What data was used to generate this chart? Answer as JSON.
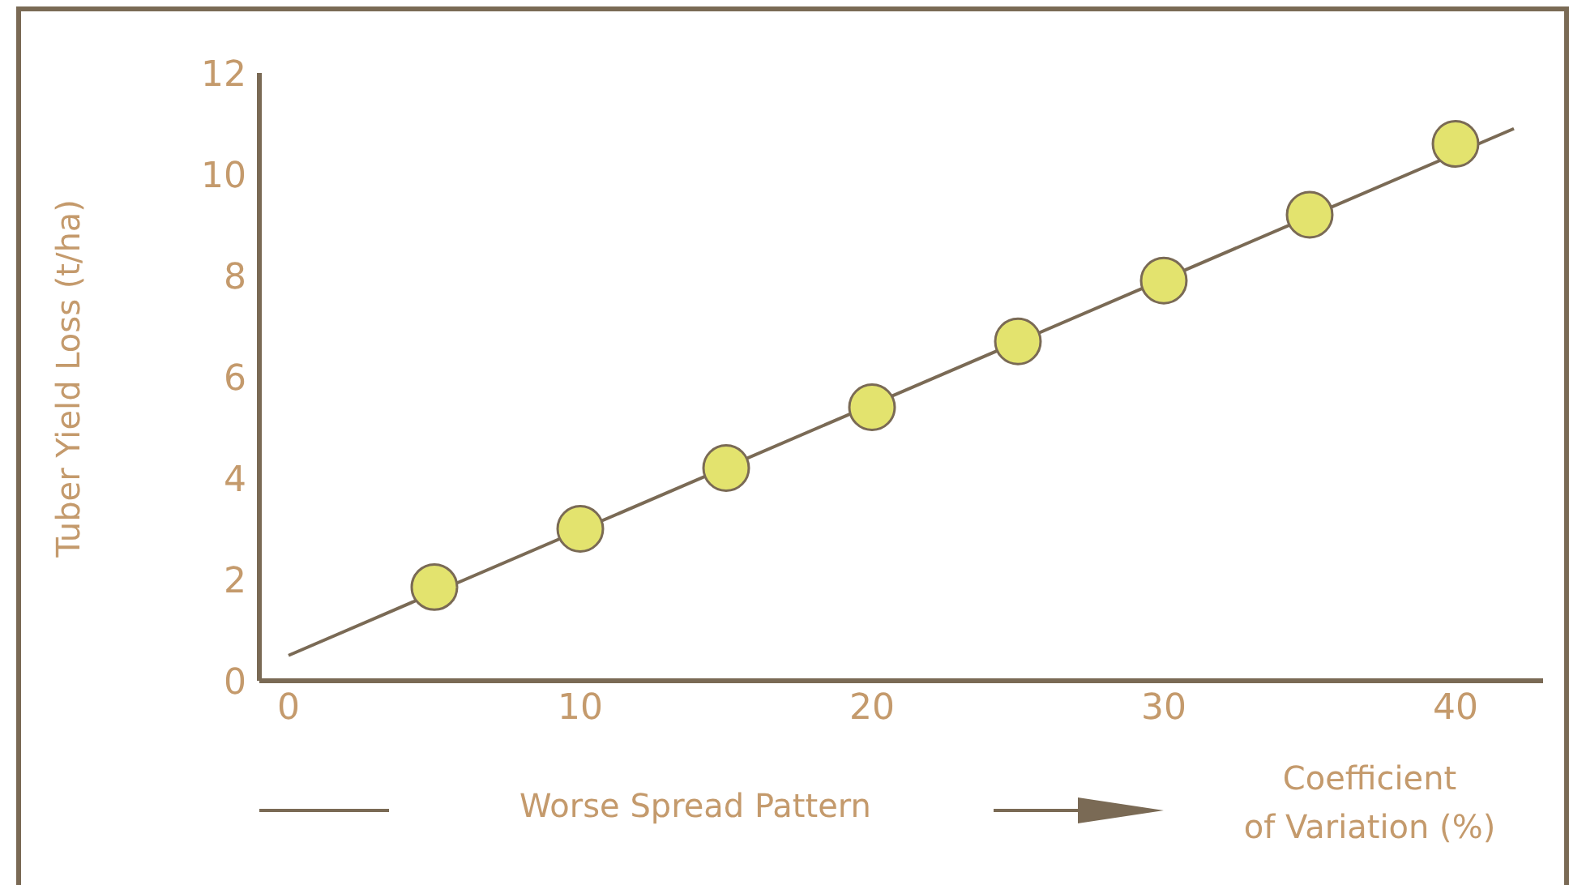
{
  "chart_data": {
    "type": "scatter",
    "xlabel": "Coefficient of Variation (%)",
    "ylabel": "Tuber Yield Loss (t/ha)",
    "annotations": [
      "Worse Spread Pattern"
    ],
    "series": [
      {
        "color": "#e3e36e",
        "x": [
          5,
          10,
          15,
          20,
          25,
          30,
          35,
          40
        ],
        "values": [
          1.85,
          3.0,
          4.2,
          5.4,
          6.7,
          7.9,
          9.2,
          10.6
        ]
      },
      {
        "type": "line",
        "color": "#7a6a55",
        "marker": "none",
        "x": [
          0,
          42
        ],
        "values": [
          0.5,
          10.9
        ]
      }
    ],
    "xlim": [
      -1,
      43
    ],
    "xticks": [
      0,
      10,
      20,
      30,
      40
    ],
    "ylim": [
      0,
      12
    ],
    "yticks": [
      0,
      2,
      4,
      6,
      8,
      10,
      12
    ],
    "grid": false,
    "legend": false
  }
}
